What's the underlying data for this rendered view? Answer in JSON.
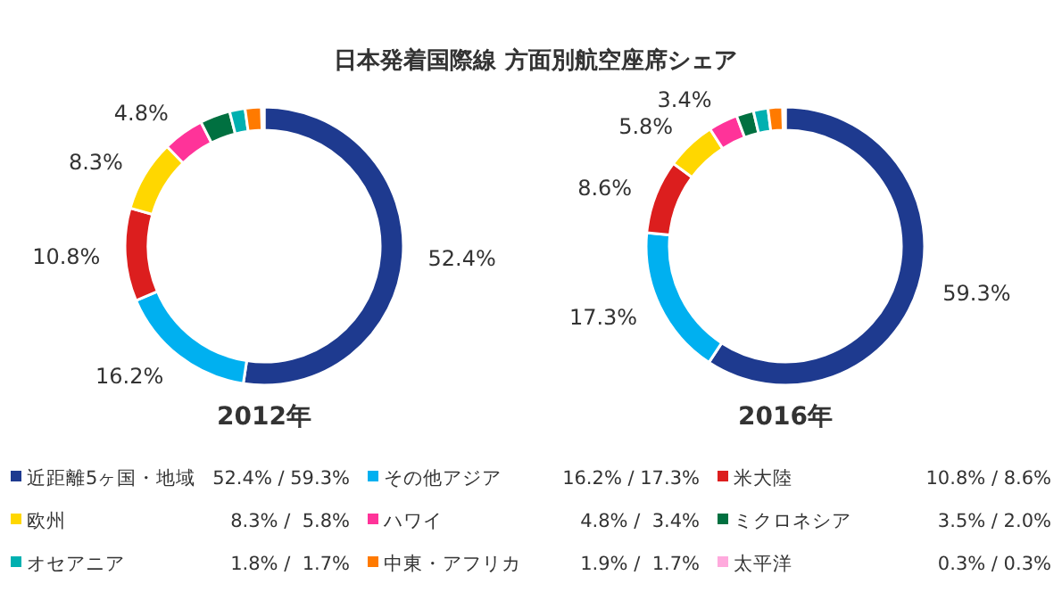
{
  "chart_data": [
    {
      "type": "donut",
      "title": "日本発着国際線 方面別航空座席シェア",
      "xlabel": "2012年",
      "categories": [
        "近距離5ヶ国・地域",
        "その他アジア",
        "米大陸",
        "欧州",
        "ハワイ",
        "ミクロネシア",
        "オセアニア",
        "中東・アフリカ",
        "太平洋"
      ],
      "values": [
        52.4,
        16.2,
        10.8,
        8.3,
        4.8,
        3.5,
        1.8,
        1.9,
        0.3
      ],
      "colors": [
        "#1e3a8f",
        "#00b0f0",
        "#dc1e1e",
        "#ffd700",
        "#ff3399",
        "#007040",
        "#00b0b0",
        "#ff7a00",
        "#ffaadd"
      ],
      "value_labels": [
        "52.4%",
        "16.2%",
        "10.8%",
        "8.3%",
        "4.8%",
        null,
        null,
        null,
        null
      ],
      "legend": "bottom",
      "annotations": [
        "52.4% / 59.3%",
        "16.2% / 17.3%",
        "10.8% / 8.6%",
        "8.3% /  5.8%",
        "4.8% /  3.4%",
        "3.5% / 2.0%",
        "1.8% /  1.7%",
        "1.9% /  1.7%",
        "0.3% / 0.3%"
      ]
    },
    {
      "type": "donut",
      "xlabel": "2016年",
      "values": [
        59.3,
        17.3,
        8.6,
        5.8,
        3.4,
        2.0,
        1.7,
        1.7,
        0.3
      ],
      "colors": [
        "#1e3a8f",
        "#00b0f0",
        "#dc1e1e",
        "#ffd700",
        "#ff3399",
        "#007040",
        "#00b0b0",
        "#ff7a00",
        "#ffaadd"
      ],
      "value_labels": [
        "59.3%",
        "17.3%",
        "8.6%",
        "5.8%",
        "3.4%",
        null,
        null,
        null,
        null
      ]
    }
  ]
}
